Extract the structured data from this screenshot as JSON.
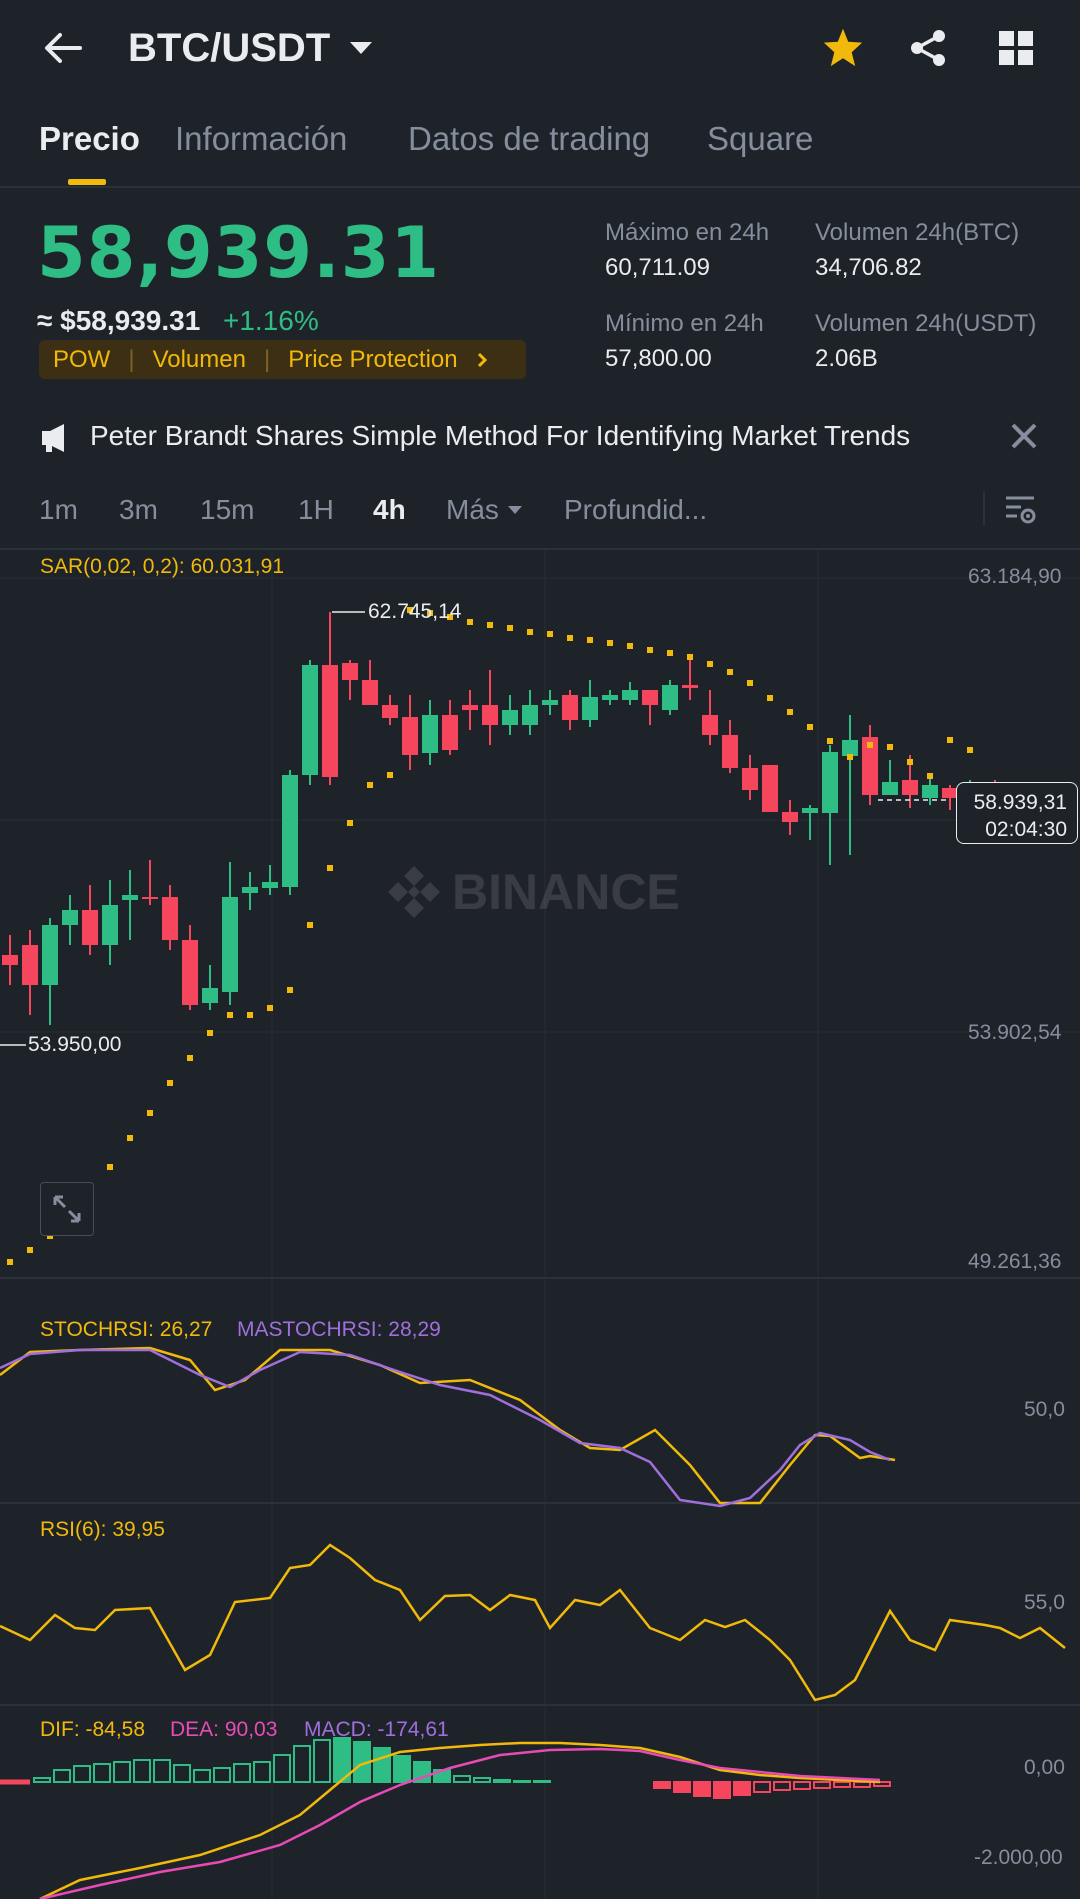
{
  "header": {
    "pair": "BTC/USDT",
    "back_icon": "arrow-left-icon",
    "dropdown_icon": "caret-down-icon",
    "favorite_icon": "star-icon",
    "share_icon": "share-icon",
    "grid_icon": "grid-icon"
  },
  "tabs": [
    "Precio",
    "Información",
    "Datos de trading",
    "Square"
  ],
  "active_tab": 0,
  "price": {
    "last": "58,939.31",
    "fiat": "≈ $58,939.31",
    "change": "+1.16%",
    "tags": [
      "POW",
      "Volumen",
      "Price Protection"
    ],
    "high_label": "Máximo en 24h",
    "high_value": "60,711.09",
    "low_label": "Mínimo en 24h",
    "low_value": "57,800.00",
    "vol_btc_label": "Volumen 24h(BTC)",
    "vol_btc_value": "34,706.82",
    "vol_usdt_label": "Volumen 24h(USDT)",
    "vol_usdt_value": "2.06B"
  },
  "news": {
    "text": "Peter Brandt Shares Simple Method For Identifying Market Trends",
    "icon": "megaphone-icon",
    "close_icon": "close-icon"
  },
  "timeframes": [
    "1m",
    "3m",
    "15m",
    "1H",
    "4h",
    "Más",
    "Profundid..."
  ],
  "active_timeframe": 4,
  "chart": {
    "sar_label": "SAR(0,02, 0,2): 60.031,91",
    "y_labels": [
      "63.184,90",
      "53.902,54",
      "49.261,36"
    ],
    "high_marker": "62.745,14",
    "low_marker": "53.950,00",
    "current_price": "58.939,31",
    "countdown": "02:04:30",
    "watermark": "BINANCE",
    "expand_icon": "expand-icon",
    "settings_icon": "chart-settings-icon"
  },
  "stoch": {
    "label1": "STOCHRSI: 26,27",
    "label2": "MASTOCHRSI: 28,29",
    "axis": "50,0"
  },
  "rsi": {
    "label": "RSI(6): 39,95",
    "axis": "55,0"
  },
  "macd": {
    "dif": "DIF: -84,58",
    "dea": "DEA: 90,03",
    "macd": "MACD: -174,61",
    "axis_top": "0,00",
    "axis_bottom": "-2.000,00"
  },
  "colors": {
    "up": "#2ebd85",
    "down": "#f6465d",
    "accent": "#f0b90b",
    "purple": "#9f6fdc",
    "pink": "#e84bb6"
  }
}
